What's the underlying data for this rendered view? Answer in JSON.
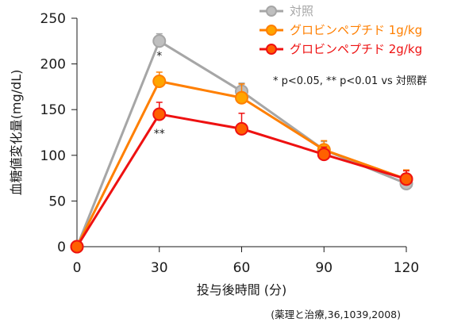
{
  "chart_data": {
    "type": "line",
    "title": "",
    "xlabel": "投与後時間 (分)",
    "ylabel": "血糖値変化量(mg/dL)",
    "x": [
      0,
      30,
      60,
      90,
      120
    ],
    "xticks": [
      "0",
      "30",
      "60",
      "90",
      "120"
    ],
    "yticks": [
      "0",
      "50",
      "100",
      "150",
      "200",
      "250"
    ],
    "xlim": [
      0,
      120
    ],
    "ylim": [
      0,
      250
    ],
    "grid": false,
    "legend_position": "top-right",
    "series": [
      {
        "name": "対照",
        "color": "#a6a6a6",
        "fill": "#bfbfbf",
        "values": [
          0,
          225,
          170,
          106,
          69
        ],
        "errors": [
          0,
          8,
          9,
          9,
          5
        ]
      },
      {
        "name": "グロビンペプチド 1g/kg",
        "color": "#ff7f00",
        "fill": "#ffa500",
        "values": [
          0,
          181,
          163,
          106,
          74
        ],
        "errors": [
          0,
          10,
          15,
          10,
          10
        ]
      },
      {
        "name": "グロビンペプチド 2g/kg",
        "color": "#ee1111",
        "fill": "#ff6000",
        "values": [
          0,
          145,
          129,
          101,
          74
        ],
        "errors": [
          0,
          13,
          17,
          8,
          9
        ]
      }
    ],
    "annotations": [
      {
        "text": "*",
        "x": 30,
        "y": 205
      },
      {
        "text": "**",
        "x": 30,
        "y": 120
      }
    ],
    "note": "* p<0.05, ** p<0.01 vs 対照群",
    "source": "(薬理と治療,36,1039,2008)"
  }
}
